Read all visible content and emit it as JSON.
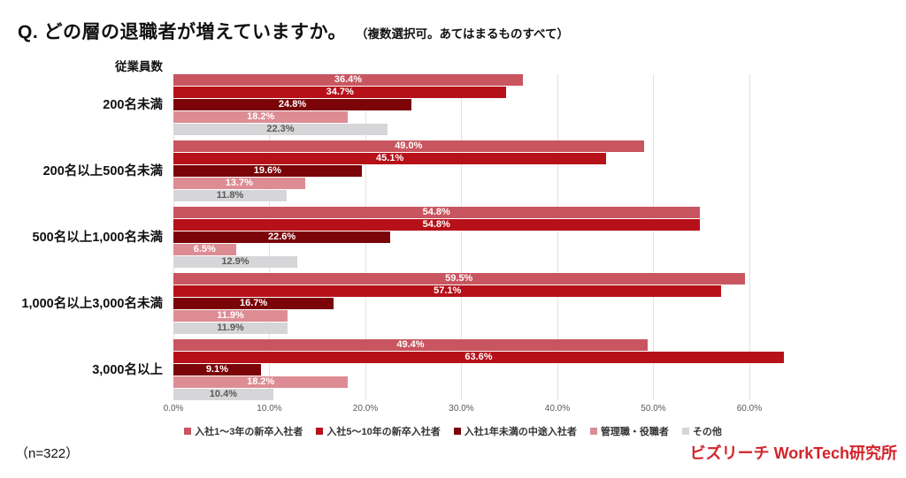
{
  "title": {
    "main": "Q. どの層の退職者が増えていますか。",
    "note": "（複数選択可。あてはまるものすべて）"
  },
  "employee_header": "従業員数",
  "chart_data": {
    "type": "bar",
    "orientation": "horizontal",
    "value_unit": "%",
    "grid": true,
    "legend_position": "bottom",
    "xlim": [
      0,
      75.4
    ],
    "ticks": [
      0,
      10,
      20,
      30,
      40,
      50,
      60
    ],
    "tick_labels": [
      "0.0%",
      "10.0%",
      "20.0%",
      "30.0%",
      "40.0%",
      "50.0%",
      "60.0%"
    ],
    "categories": [
      "200名未満",
      "200名以上500名未満",
      "500名以上1,000名未満",
      "1,000名以上3,000名未満",
      "3,000名以上"
    ],
    "series": [
      {
        "name": "入社1〜3年の新卒入社者",
        "color": "#c8555f",
        "label_color": "#ffffff",
        "values": [
          36.4,
          49.0,
          54.8,
          59.5,
          49.4
        ]
      },
      {
        "name": "入社5〜10年の新卒入社者",
        "color": "#b61119",
        "label_color": "#ffffff",
        "values": [
          34.7,
          45.1,
          54.8,
          57.1,
          63.6
        ]
      },
      {
        "name": "入社1年未満の中途入社者",
        "color": "#7a0408",
        "label_color": "#ffffff",
        "values": [
          24.8,
          19.6,
          22.6,
          16.7,
          9.1
        ]
      },
      {
        "name": "管理職・役職者",
        "color": "#dd8c94",
        "label_color": "#ffffff",
        "values": [
          18.2,
          13.7,
          6.5,
          11.9,
          18.2
        ]
      },
      {
        "name": "その他",
        "color": "#d6d6d8",
        "label_color": "#595959",
        "values": [
          22.3,
          11.8,
          12.9,
          11.9,
          10.4
        ]
      }
    ],
    "colors": {
      "gridline": "#e2e2e2",
      "tick_text": "#595959",
      "brand_red": "#d2232a"
    }
  },
  "footer": {
    "sample": "（n=322）",
    "brand": "ビズリーチ WorkTech研究所"
  }
}
